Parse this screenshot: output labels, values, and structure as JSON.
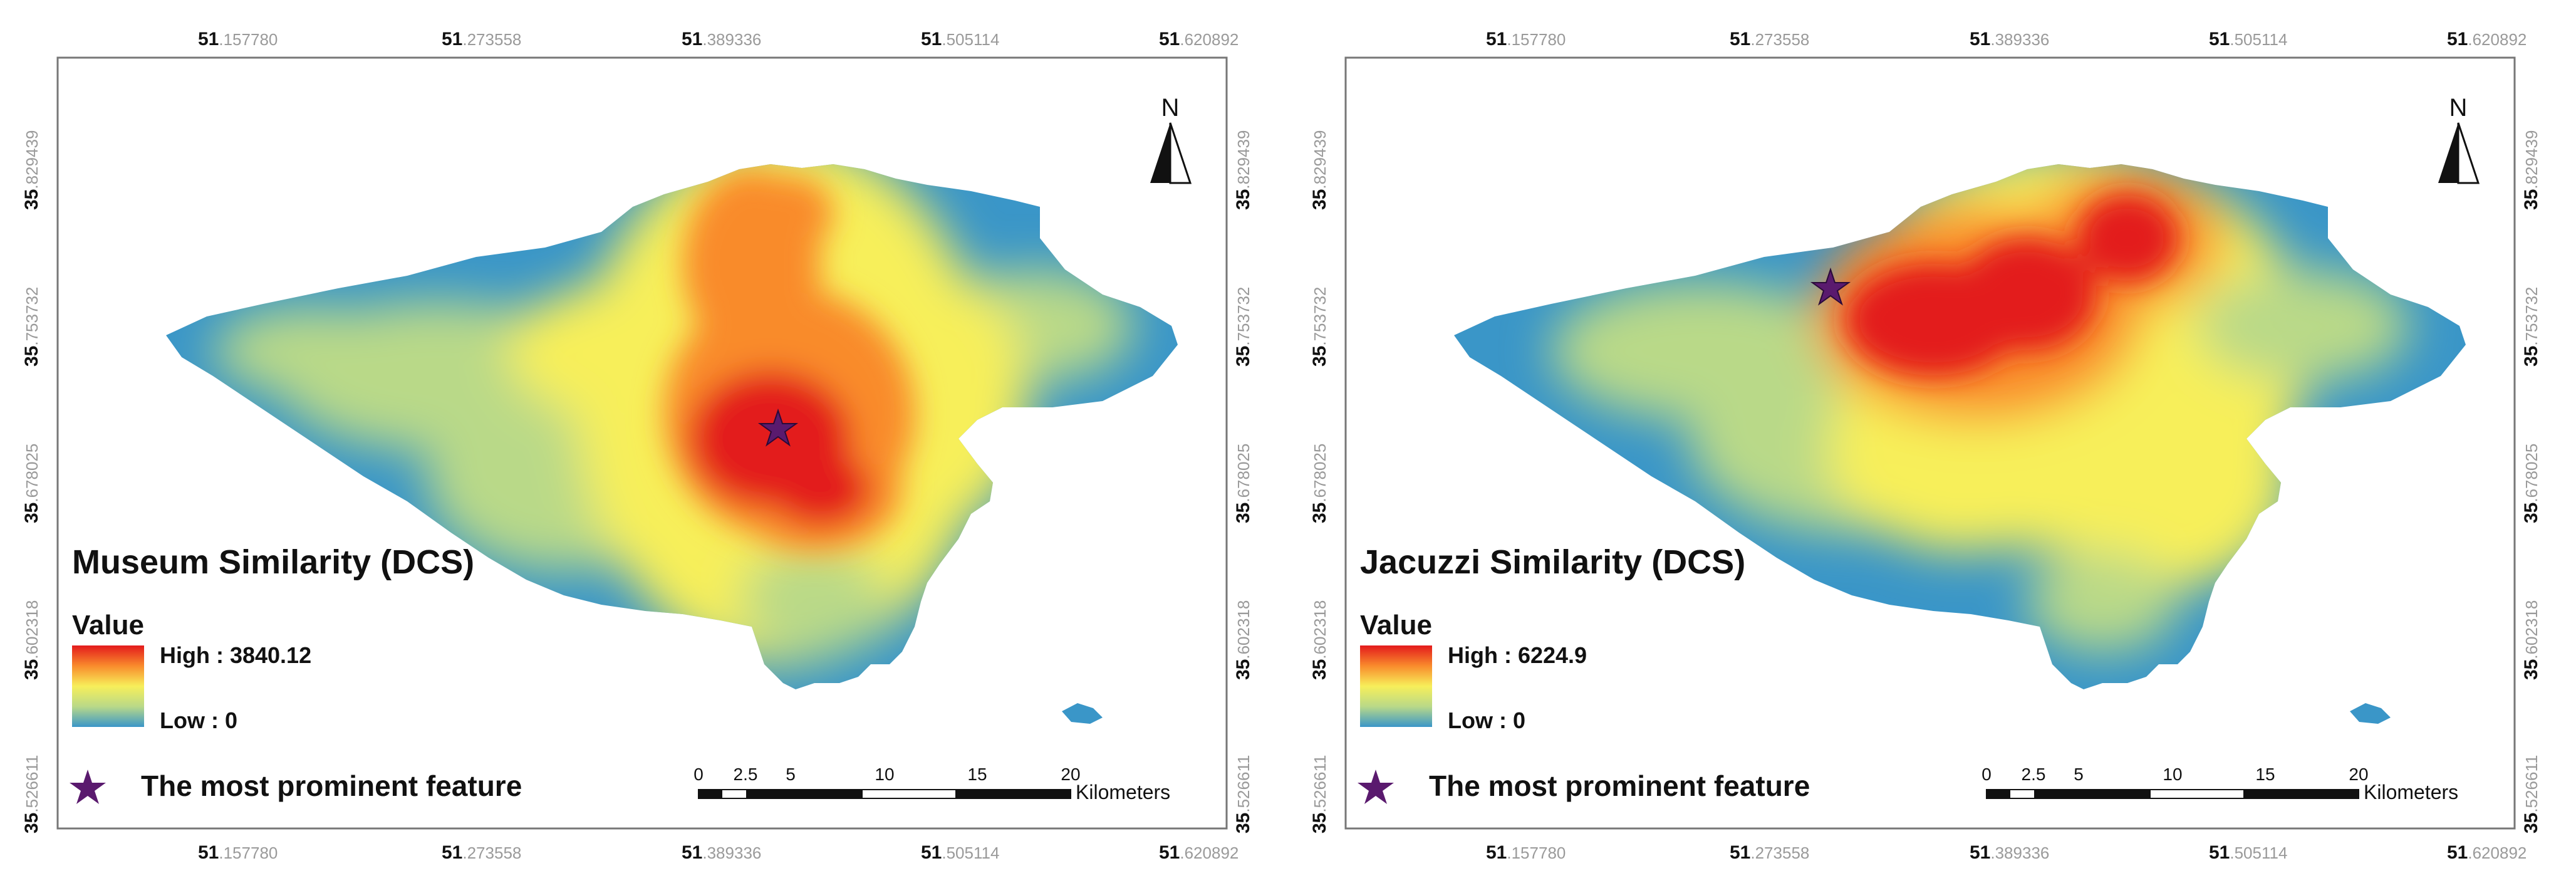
{
  "panels": [
    {
      "id": "museum",
      "title": "Museum Similarity (DCS)",
      "legend_heading": "Value",
      "legend_high": "High : 3840.12",
      "legend_low": "Low : 0",
      "feature_label": "The most prominent feature",
      "scale_ticks": [
        "0",
        "2.5",
        "5",
        "10",
        "15",
        "20"
      ],
      "scale_unit": "Kilometers",
      "north_label": "N",
      "x_ticks": [
        {
          "deg": "51",
          "frac": ".157780"
        },
        {
          "deg": "51",
          "frac": ".273558"
        },
        {
          "deg": "51",
          "frac": ".389336"
        },
        {
          "deg": "51",
          "frac": ".505114"
        },
        {
          "deg": "51",
          "frac": ".620892"
        }
      ],
      "y_ticks": [
        {
          "deg": "35",
          "frac": ".829439"
        },
        {
          "deg": "35",
          "frac": ".753732"
        },
        {
          "deg": "35",
          "frac": ".678025"
        },
        {
          "deg": "35",
          "frac": ".602318"
        },
        {
          "deg": "35",
          "frac": ".526611"
        }
      ]
    },
    {
      "id": "jacuzzi",
      "title": "Jacuzzi Similarity (DCS)",
      "legend_heading": "Value",
      "legend_high": "High : 6224.9",
      "legend_low": "Low : 0",
      "feature_label": "The most prominent feature",
      "scale_ticks": [
        "0",
        "2.5",
        "5",
        "10",
        "15",
        "20"
      ],
      "scale_unit": "Kilometers",
      "north_label": "N",
      "x_ticks": [
        {
          "deg": "51",
          "frac": ".157780"
        },
        {
          "deg": "51",
          "frac": ".273558"
        },
        {
          "deg": "51",
          "frac": ".389336"
        },
        {
          "deg": "51",
          "frac": ".505114"
        },
        {
          "deg": "51",
          "frac": ".620892"
        }
      ],
      "y_ticks": [
        {
          "deg": "35",
          "frac": ".829439"
        },
        {
          "deg": "35",
          "frac": ".753732"
        },
        {
          "deg": "35",
          "frac": ".678025"
        },
        {
          "deg": "35",
          "frac": ".602318"
        },
        {
          "deg": "35",
          "frac": ".526611"
        }
      ]
    }
  ],
  "colors": {
    "high": "#e31a1c",
    "mid_high": "#f98b2c",
    "mid": "#f7ef5a",
    "mid_low": "#b9d988",
    "low": "#3a96c8",
    "star": "#5a1a6e"
  }
}
